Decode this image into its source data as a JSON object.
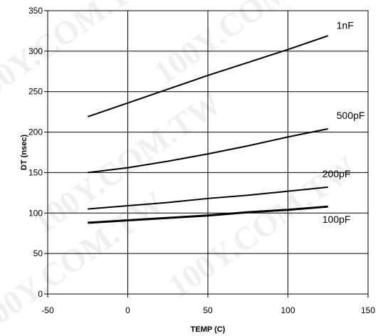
{
  "chart_data": {
    "type": "line",
    "title": "",
    "xlabel": "TEMP (C)",
    "ylabel": "DT (nsec)",
    "xlim": [
      -50,
      150
    ],
    "ylim": [
      0,
      350
    ],
    "xticks": [
      -50,
      0,
      50,
      100,
      150
    ],
    "yticks": [
      0,
      50,
      100,
      150,
      200,
      250,
      300,
      350
    ],
    "grid": true,
    "legend": "none",
    "series": [
      {
        "name": "1nF",
        "x": [
          -25,
          0,
          25,
          50,
          75,
          100,
          125
        ],
        "y": [
          219,
          236,
          253,
          270,
          286,
          302,
          319
        ]
      },
      {
        "name": "500pF",
        "x": [
          -25,
          0,
          25,
          50,
          75,
          100,
          125
        ],
        "y": [
          150,
          156,
          164,
          173,
          183,
          194,
          204
        ]
      },
      {
        "name": "200pF",
        "x": [
          -25,
          0,
          25,
          50,
          75,
          100,
          125
        ],
        "y": [
          105,
          109,
          113,
          118,
          122,
          127,
          132
        ]
      },
      {
        "name": "100pF",
        "x": [
          -25,
          0,
          25,
          50,
          75,
          100,
          125
        ],
        "y": [
          88,
          91,
          94,
          97,
          101,
          104,
          108
        ]
      }
    ],
    "series_color": "#000000",
    "watermark": "100Y.COM.TW"
  }
}
